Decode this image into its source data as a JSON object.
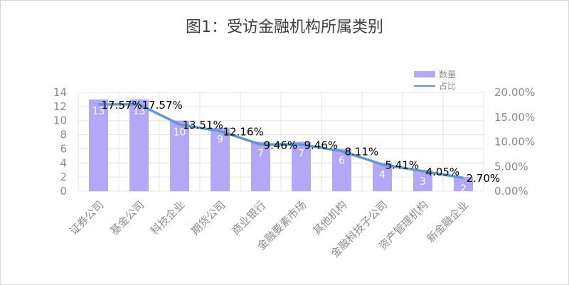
{
  "chart_data": {
    "type": "bar",
    "title": "图1：受访金融机构所属类别",
    "categories": [
      "证券公司",
      "基金公司",
      "科技企业",
      "期货公司",
      "商业银行",
      "金融要素市场",
      "其他机构",
      "金融科技子公司",
      "资产管理机构",
      "新金融企业"
    ],
    "series": [
      {
        "name": "数量",
        "type": "bar",
        "axis": "left",
        "values": [
          13,
          13,
          10,
          9,
          7,
          7,
          6,
          4,
          3,
          2
        ],
        "labels": [
          "13",
          "13",
          "10",
          "9",
          "7",
          "7",
          "6",
          "4",
          "3",
          "2"
        ]
      },
      {
        "name": "占比",
        "type": "line",
        "axis": "right",
        "values": [
          17.57,
          17.57,
          13.51,
          12.16,
          9.46,
          9.46,
          8.11,
          5.41,
          4.05,
          2.7
        ],
        "labels": [
          "17.57%",
          "17.57%",
          "13.51%",
          "12.16%",
          "9.46%",
          "9.46%",
          "8.11%",
          "5.41%",
          "4.05%",
          "2.70%"
        ]
      }
    ],
    "y_left": {
      "min": 0,
      "max": 14,
      "step": 2,
      "ticks": [
        "0",
        "2",
        "4",
        "6",
        "8",
        "10",
        "12",
        "14"
      ]
    },
    "y_right": {
      "min": 0,
      "max": 20,
      "step": 5,
      "ticks": [
        "0.00%",
        "5.00%",
        "10.00%",
        "15.00%",
        "20.00%"
      ]
    },
    "grid": true,
    "legend_position": "top-right",
    "colors": {
      "bar": "#b4a7f5",
      "line": "#5b9bd5",
      "grid": "#e3e3e3",
      "axis_text": "#8c8c8c"
    }
  }
}
